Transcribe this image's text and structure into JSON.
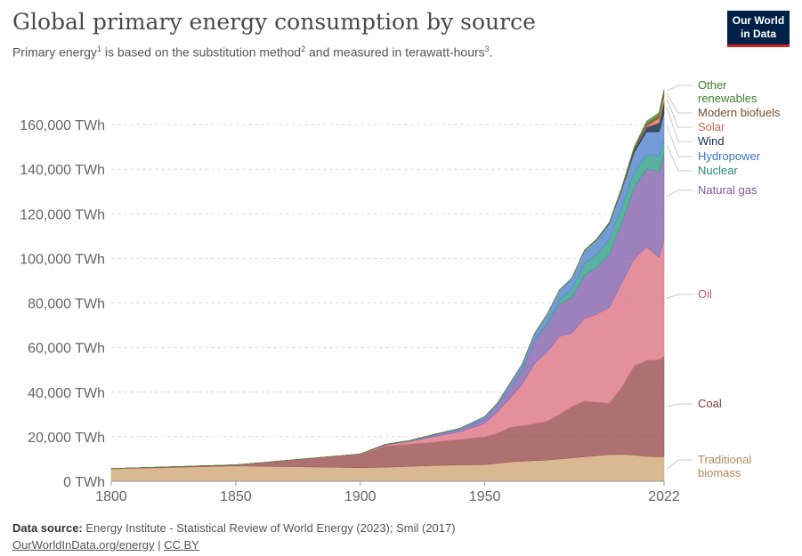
{
  "header": {
    "title": "Global primary energy consumption by source",
    "subtitle_parts": [
      "Primary energy",
      "1",
      " is based on the substitution method",
      "2",
      " and measured in terawatt-hours",
      "3",
      "."
    ]
  },
  "logo": {
    "line1": "Our World",
    "line2": "in Data"
  },
  "footer": {
    "source_label": "Data source:",
    "source_text": " Energy Institute - Statistical Review of World Energy (2023); Smil (2017)",
    "link_text": "OurWorldInData.org/energy",
    "separator": " | ",
    "license": "CC BY"
  },
  "chart_data": {
    "type": "area",
    "stacked": true,
    "title": "Global primary energy consumption by source",
    "ylim": [
      0,
      180000
    ],
    "y_ticks": [
      0,
      20000,
      40000,
      60000,
      80000,
      100000,
      120000,
      140000,
      160000
    ],
    "y_tick_labels": [
      "0 TWh",
      "20,000 TWh",
      "40,000 TWh",
      "60,000 TWh",
      "80,000 TWh",
      "100,000 TWh",
      "120,000 TWh",
      "140,000 TWh",
      "160,000 TWh"
    ],
    "xlim": [
      1800,
      2022
    ],
    "x_ticks": [
      1800,
      1850,
      1900,
      1950,
      2022
    ],
    "x_tick_labels": [
      "1800",
      "1850",
      "1900",
      "1950",
      "2022"
    ],
    "grid": true,
    "legend": "right-inline",
    "x": [
      1800,
      1850,
      1900,
      1910,
      1920,
      1930,
      1940,
      1950,
      1955,
      1960,
      1965,
      1970,
      1975,
      1980,
      1985,
      1990,
      1995,
      2000,
      2005,
      2010,
      2015,
      2020,
      2022
    ],
    "series": [
      {
        "name": "Traditional biomass",
        "color": "#d4ab7f",
        "values": [
          5600,
          6900,
          6100,
          6300,
          6700,
          7100,
          7300,
          7500,
          8000,
          8700,
          9000,
          9300,
          9500,
          10000,
          10500,
          11000,
          11500,
          12000,
          12100,
          11800,
          11200,
          11000,
          11100
        ]
      },
      {
        "name": "Coal",
        "color": "#a05858",
        "values": [
          100,
          500,
          5900,
          9500,
          10000,
          10500,
          11500,
          12500,
          13500,
          15500,
          16000,
          16500,
          17500,
          20000,
          23000,
          25000,
          24000,
          23000,
          30000,
          40000,
          43000,
          43500,
          45000
        ]
      },
      {
        "name": "Oil",
        "color": "#de7d8b",
        "values": [
          0,
          0,
          200,
          500,
          1200,
          2500,
          3400,
          6000,
          9500,
          13000,
          18500,
          27000,
          31000,
          35000,
          33000,
          37000,
          39500,
          43000,
          47000,
          48000,
          51000,
          46000,
          52000
        ]
      },
      {
        "name": "Natural gas",
        "color": "#8b6bb0",
        "values": [
          0,
          0,
          70,
          200,
          300,
          700,
          900,
          2100,
          3000,
          4500,
          6500,
          10200,
          12000,
          14500,
          16000,
          19500,
          21000,
          24000,
          27000,
          31800,
          35000,
          38500,
          39500
        ]
      },
      {
        "name": "Nuclear",
        "color": "#3aa58d",
        "values": [
          0,
          0,
          0,
          0,
          0,
          0,
          0,
          0,
          0,
          20,
          80,
          200,
          1000,
          1900,
          3700,
          5200,
          5900,
          6600,
          7000,
          6900,
          6500,
          6800,
          6700
        ]
      },
      {
        "name": "Hydropower",
        "color": "#5b8bd0",
        "values": [
          0,
          0,
          0,
          30,
          100,
          300,
          600,
          900,
          1000,
          2000,
          2400,
          3100,
          3800,
          4400,
          5000,
          5700,
          6500,
          7000,
          7600,
          9000,
          10200,
          11000,
          11000
        ]
      },
      {
        "name": "Wind",
        "color": "#1a2f4a",
        "values": [
          0,
          0,
          0,
          0,
          0,
          0,
          0,
          0,
          0,
          0,
          0,
          0,
          0,
          0,
          0,
          10,
          20,
          90,
          270,
          880,
          2000,
          4000,
          5000
        ]
      },
      {
        "name": "Solar",
        "color": "#e0805f",
        "values": [
          0,
          0,
          0,
          0,
          0,
          0,
          0,
          0,
          0,
          0,
          0,
          0,
          0,
          0,
          0,
          0,
          0,
          5,
          10,
          80,
          620,
          2200,
          3000
        ]
      },
      {
        "name": "Modern biofuels",
        "color": "#7a4a2e",
        "values": [
          0,
          0,
          0,
          0,
          0,
          0,
          0,
          0,
          0,
          0,
          0,
          0,
          0,
          0,
          20,
          150,
          200,
          220,
          380,
          850,
          1000,
          1050,
          1100
        ]
      },
      {
        "name": "Other renewables",
        "color": "#4d8f3a",
        "values": [
          0,
          0,
          0,
          0,
          0,
          0,
          0,
          0,
          0,
          0,
          0,
          0,
          0,
          0,
          0,
          100,
          200,
          300,
          500,
          700,
          1000,
          1400,
          1500
        ]
      }
    ]
  }
}
